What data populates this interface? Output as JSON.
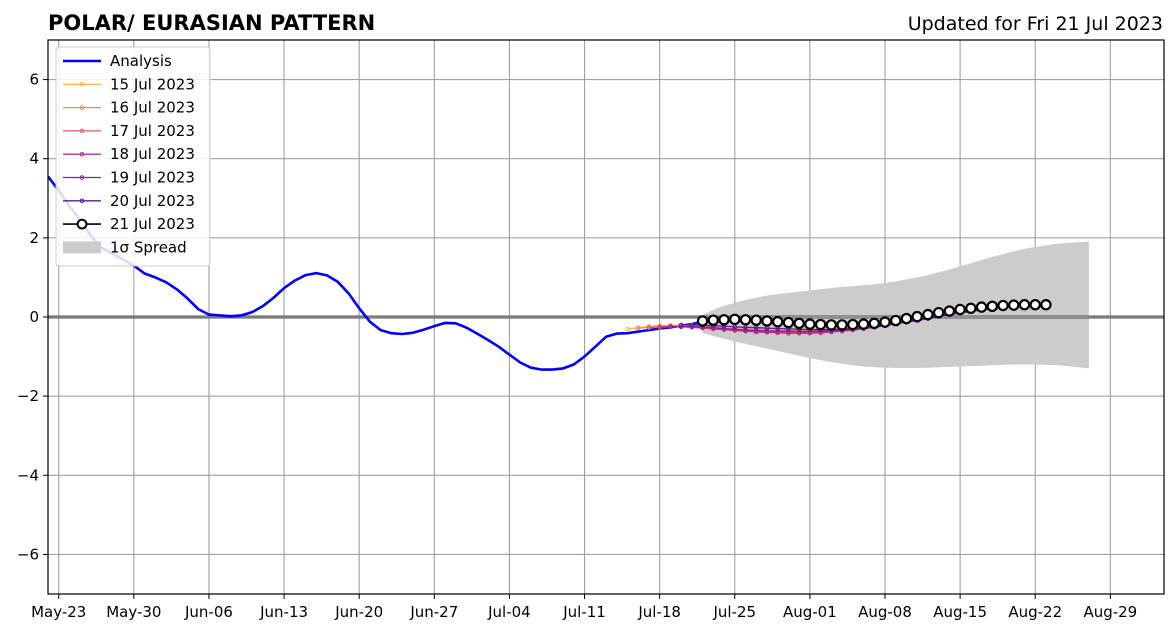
{
  "chart_data": {
    "type": "line",
    "title": "POLAR/ EURASIAN  PATTERN",
    "subtitle": "Updated for Fri 21 Jul 2023",
    "xlabel": "",
    "ylabel": "",
    "x_range": [
      "2023-05-22",
      "2023-09-03"
    ],
    "ylim": [
      -7,
      7
    ],
    "y_ticks": [
      -6,
      -4,
      -2,
      0,
      2,
      4,
      6
    ],
    "x_ticks": [
      {
        "date": "2023-05-23",
        "label": "May-23"
      },
      {
        "date": "2023-05-30",
        "label": "May-30"
      },
      {
        "date": "2023-06-06",
        "label": "Jun-06"
      },
      {
        "date": "2023-06-13",
        "label": "Jun-13"
      },
      {
        "date": "2023-06-20",
        "label": "Jun-20"
      },
      {
        "date": "2023-06-27",
        "label": "Jun-27"
      },
      {
        "date": "2023-07-04",
        "label": "Jul-04"
      },
      {
        "date": "2023-07-11",
        "label": "Jul-11"
      },
      {
        "date": "2023-07-18",
        "label": "Jul-18"
      },
      {
        "date": "2023-07-25",
        "label": "Jul-25"
      },
      {
        "date": "2023-08-01",
        "label": "Aug-01"
      },
      {
        "date": "2023-08-08",
        "label": "Aug-08"
      },
      {
        "date": "2023-08-15",
        "label": "Aug-15"
      },
      {
        "date": "2023-08-22",
        "label": "Aug-22"
      },
      {
        "date": "2023-08-29",
        "label": "Aug-29"
      }
    ],
    "grid": true,
    "legend_position": "top-left",
    "analysis": {
      "name": "Analysis",
      "color": "#0000ff",
      "start": "2023-05-22",
      "step_days": 1,
      "values": [
        3.55,
        3.2,
        2.8,
        2.45,
        2.05,
        1.75,
        1.6,
        1.45,
        1.3,
        1.1,
        1.0,
        0.88,
        0.7,
        0.47,
        0.2,
        0.06,
        0.04,
        0.02,
        0.04,
        0.12,
        0.27,
        0.48,
        0.73,
        0.92,
        1.06,
        1.11,
        1.05,
        0.89,
        0.6,
        0.22,
        -0.12,
        -0.33,
        -0.41,
        -0.43,
        -0.4,
        -0.32,
        -0.23,
        -0.15,
        -0.16,
        -0.27,
        -0.42,
        -0.58,
        -0.75,
        -0.95,
        -1.15,
        -1.28,
        -1.33,
        -1.33,
        -1.3,
        -1.2,
        -1.0,
        -0.75,
        -0.5,
        -0.42,
        -0.41,
        -0.37,
        -0.33,
        -0.29,
        -0.26,
        -0.22,
        -0.18,
        -0.12,
        -0.07,
        -0.05
      ]
    },
    "forecasts": [
      {
        "name": "15 Jul 2023",
        "color": "#ffb640",
        "start": "2023-07-15",
        "values": [
          -0.3,
          -0.27,
          -0.24,
          -0.22,
          -0.21,
          -0.21,
          -0.22,
          -0.23,
          -0.24,
          -0.25,
          -0.26,
          -0.27,
          -0.28,
          -0.29,
          -0.3,
          -0.31,
          -0.32,
          -0.32,
          -0.31,
          -0.3,
          -0.28,
          -0.26,
          -0.23,
          -0.2,
          -0.16,
          -0.12,
          -0.08,
          -0.04,
          0.0,
          0.04,
          0.08,
          0.12,
          0.16,
          0.2,
          0.24
        ]
      },
      {
        "name": "16 Jul 2023",
        "color": "#f8864a",
        "start": "2023-07-16",
        "values": [
          -0.28,
          -0.26,
          -0.24,
          -0.23,
          -0.23,
          -0.24,
          -0.25,
          -0.27,
          -0.29,
          -0.3,
          -0.31,
          -0.32,
          -0.33,
          -0.34,
          -0.35,
          -0.35,
          -0.35,
          -0.34,
          -0.32,
          -0.3,
          -0.27,
          -0.24,
          -0.2,
          -0.16,
          -0.12,
          -0.07,
          -0.03,
          0.02,
          0.06,
          0.1,
          0.14,
          0.18,
          0.21,
          0.24,
          0.26
        ]
      },
      {
        "name": "17 Jul 2023",
        "color": "#e05a6e",
        "start": "2023-07-17",
        "values": [
          -0.27,
          -0.25,
          -0.24,
          -0.24,
          -0.25,
          -0.27,
          -0.29,
          -0.31,
          -0.33,
          -0.35,
          -0.36,
          -0.37,
          -0.38,
          -0.39,
          -0.39,
          -0.39,
          -0.38,
          -0.36,
          -0.34,
          -0.31,
          -0.28,
          -0.24,
          -0.2,
          -0.15,
          -0.1,
          -0.05,
          0.0,
          0.05,
          0.09,
          0.13,
          0.17,
          0.2,
          0.23,
          0.26,
          0.28
        ]
      },
      {
        "name": "18 Jul 2023",
        "color": "#b8337e",
        "start": "2023-07-18",
        "values": [
          -0.26,
          -0.25,
          -0.25,
          -0.26,
          -0.28,
          -0.3,
          -0.32,
          -0.34,
          -0.36,
          -0.38,
          -0.39,
          -0.4,
          -0.41,
          -0.41,
          -0.41,
          -0.4,
          -0.38,
          -0.36,
          -0.33,
          -0.3,
          -0.26,
          -0.22,
          -0.17,
          -0.12,
          -0.07,
          -0.02,
          0.03,
          0.08,
          0.12,
          0.16,
          0.2,
          0.23,
          0.26,
          0.28,
          0.3
        ]
      },
      {
        "name": "19 Jul 2023",
        "color": "#8c1f9c",
        "start": "2023-07-19",
        "values": [
          -0.24,
          -0.24,
          -0.24,
          -0.25,
          -0.27,
          -0.29,
          -0.31,
          -0.33,
          -0.34,
          -0.35,
          -0.36,
          -0.36,
          -0.37,
          -0.37,
          -0.36,
          -0.35,
          -0.33,
          -0.31,
          -0.28,
          -0.25,
          -0.21,
          -0.17,
          -0.12,
          -0.07,
          -0.02,
          0.03,
          0.08,
          0.12,
          0.16,
          0.2,
          0.23,
          0.26,
          0.28,
          0.3,
          0.31
        ]
      },
      {
        "name": "20 Jul 2023",
        "color": "#5a1a9a",
        "start": "2023-07-20",
        "values": [
          -0.2,
          -0.2,
          -0.21,
          -0.22,
          -0.23,
          -0.25,
          -0.26,
          -0.27,
          -0.28,
          -0.29,
          -0.3,
          -0.31,
          -0.32,
          -0.32,
          -0.32,
          -0.31,
          -0.29,
          -0.27,
          -0.24,
          -0.21,
          -0.17,
          -0.13,
          -0.09,
          -0.04,
          0.01,
          0.06,
          0.1,
          0.14,
          0.18,
          0.21,
          0.24,
          0.27,
          0.29,
          0.3,
          0.31
        ]
      },
      {
        "name": "21 Jul 2023",
        "color": "#000000",
        "start": "2023-07-22",
        "values": [
          -0.1,
          -0.08,
          -0.07,
          -0.06,
          -0.07,
          -0.08,
          -0.1,
          -0.12,
          -0.14,
          -0.16,
          -0.18,
          -0.19,
          -0.2,
          -0.2,
          -0.19,
          -0.18,
          -0.16,
          -0.13,
          -0.09,
          -0.04,
          0.01,
          0.06,
          0.11,
          0.15,
          0.19,
          0.22,
          0.25,
          0.27,
          0.29,
          0.3,
          0.31,
          0.31,
          0.31
        ]
      }
    ],
    "spread": {
      "name": "1σ Spread",
      "color": "#cccccc",
      "start": "2023-07-22",
      "upper": [
        0.05,
        0.18,
        0.28,
        0.36,
        0.43,
        0.49,
        0.54,
        0.58,
        0.61,
        0.64,
        0.67,
        0.7,
        0.73,
        0.76,
        0.78,
        0.8,
        0.83,
        0.86,
        0.9,
        0.95,
        1.0,
        1.06,
        1.13,
        1.2,
        1.28,
        1.36,
        1.44,
        1.52,
        1.59,
        1.66,
        1.72,
        1.77,
        1.81,
        1.85,
        1.87,
        1.89,
        1.9
      ],
      "lower": [
        -0.4,
        -0.48,
        -0.55,
        -0.62,
        -0.68,
        -0.74,
        -0.8,
        -0.86,
        -0.92,
        -0.98,
        -1.04,
        -1.09,
        -1.14,
        -1.18,
        -1.22,
        -1.25,
        -1.27,
        -1.28,
        -1.29,
        -1.29,
        -1.29,
        -1.28,
        -1.27,
        -1.26,
        -1.25,
        -1.24,
        -1.23,
        -1.22,
        -1.21,
        -1.2,
        -1.2,
        -1.2,
        -1.21,
        -1.22,
        -1.24,
        -1.27,
        -1.3
      ]
    }
  }
}
